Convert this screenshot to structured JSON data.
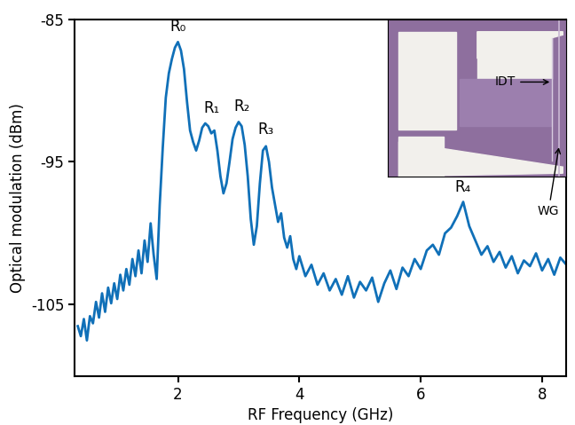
{
  "chart_data": {
    "type": "line",
    "x_label": "RF Frequency (GHz)",
    "y_label": "Optical modulation (dBm)",
    "xlim": [
      0.3,
      8.4
    ],
    "ylim": [
      -110,
      -85
    ],
    "xticks": [
      2,
      4,
      6,
      8
    ],
    "yticks": [
      -85,
      -95,
      -105
    ],
    "grid": false,
    "color": "#1070b8",
    "x": [
      0.35,
      0.4,
      0.45,
      0.5,
      0.55,
      0.6,
      0.65,
      0.7,
      0.75,
      0.8,
      0.85,
      0.9,
      0.95,
      1.0,
      1.05,
      1.1,
      1.15,
      1.2,
      1.25,
      1.3,
      1.35,
      1.4,
      1.45,
      1.5,
      1.55,
      1.6,
      1.65,
      1.7,
      1.75,
      1.8,
      1.85,
      1.9,
      1.95,
      2.0,
      2.05,
      2.1,
      2.15,
      2.2,
      2.25,
      2.3,
      2.35,
      2.4,
      2.45,
      2.5,
      2.55,
      2.6,
      2.65,
      2.7,
      2.75,
      2.8,
      2.85,
      2.9,
      2.95,
      3.0,
      3.05,
      3.1,
      3.15,
      3.2,
      3.25,
      3.3,
      3.35,
      3.4,
      3.45,
      3.5,
      3.55,
      3.6,
      3.65,
      3.7,
      3.75,
      3.8,
      3.85,
      3.9,
      3.95,
      4.0,
      4.1,
      4.2,
      4.3,
      4.4,
      4.5,
      4.6,
      4.7,
      4.8,
      4.9,
      5.0,
      5.1,
      5.2,
      5.3,
      5.4,
      5.5,
      5.6,
      5.7,
      5.8,
      5.9,
      6.0,
      6.1,
      6.2,
      6.3,
      6.4,
      6.5,
      6.6,
      6.7,
      6.8,
      6.9,
      7.0,
      7.1,
      7.2,
      7.3,
      7.4,
      7.5,
      7.6,
      7.7,
      7.8,
      7.9,
      8.0,
      8.1,
      8.2,
      8.3,
      8.4
    ],
    "values": [
      -106.5,
      -107.2,
      -106.0,
      -107.5,
      -105.8,
      -106.3,
      -104.8,
      -105.9,
      -104.2,
      -105.5,
      -103.8,
      -104.9,
      -103.5,
      -104.6,
      -102.9,
      -104.0,
      -102.5,
      -103.6,
      -101.8,
      -103.0,
      -101.2,
      -102.8,
      -100.5,
      -102.0,
      -99.3,
      -101.5,
      -103.2,
      -98.0,
      -94.0,
      -90.5,
      -88.8,
      -87.8,
      -87.0,
      -86.6,
      -87.2,
      -88.5,
      -90.8,
      -92.8,
      -93.6,
      -94.2,
      -93.5,
      -92.6,
      -92.3,
      -92.5,
      -93.0,
      -92.8,
      -94.2,
      -96.0,
      -97.2,
      -96.5,
      -95.0,
      -93.4,
      -92.6,
      -92.2,
      -92.5,
      -93.8,
      -96.0,
      -99.0,
      -100.8,
      -99.5,
      -96.5,
      -94.2,
      -93.9,
      -95.0,
      -96.8,
      -98.0,
      -99.2,
      -98.6,
      -100.3,
      -101.0,
      -100.2,
      -101.8,
      -102.5,
      -101.6,
      -103.0,
      -102.2,
      -103.6,
      -102.8,
      -104.0,
      -103.2,
      -104.3,
      -103.0,
      -104.5,
      -103.4,
      -104.0,
      -103.1,
      -104.8,
      -103.5,
      -102.6,
      -103.9,
      -102.4,
      -103.0,
      -101.8,
      -102.5,
      -101.2,
      -100.8,
      -101.5,
      -100.0,
      -99.6,
      -98.8,
      -97.8,
      -99.5,
      -100.5,
      -101.5,
      -100.9,
      -102.0,
      -101.3,
      -102.4,
      -101.6,
      -102.8,
      -101.9,
      -102.3,
      -101.4,
      -102.6,
      -101.8,
      -102.9,
      -101.7,
      -102.2
    ],
    "annotations": [
      {
        "text": "R₀",
        "x": 2.0,
        "y": -86.1
      },
      {
        "text": "R₁",
        "x": 2.55,
        "y": -91.8
      },
      {
        "text": "R₂",
        "x": 3.05,
        "y": -91.7
      },
      {
        "text": "R₃",
        "x": 3.45,
        "y": -93.3
      },
      {
        "text": "R₄",
        "x": 6.7,
        "y": -97.3
      }
    ]
  },
  "inset": {
    "labels": [
      "IDT",
      "WG"
    ]
  }
}
